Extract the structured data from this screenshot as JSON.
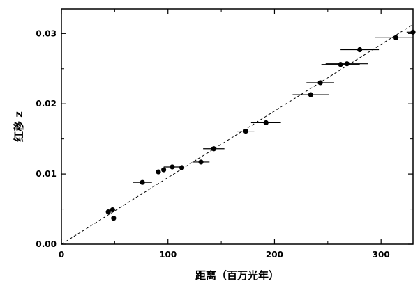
{
  "chart_data": {
    "type": "scatter",
    "title": "",
    "xlabel": "距离（百万光年）",
    "ylabel": "红移 z",
    "xlim": [
      0,
      330
    ],
    "ylim": [
      0,
      0.0335
    ],
    "x_ticks": [
      0,
      100,
      200,
      300
    ],
    "x_tick_labels": [
      "0",
      "100",
      "200",
      "300"
    ],
    "y_ticks": [
      0,
      0.01,
      0.02,
      0.03
    ],
    "y_tick_labels": [
      "0.00",
      "0.01",
      "0.02",
      "0.03"
    ],
    "grid": false,
    "legend": "none",
    "fit_line": {
      "style": "dashed",
      "x": [
        0,
        330
      ],
      "y": [
        0,
        0.0313
      ]
    },
    "points": [
      {
        "x": 44,
        "y": 0.0046,
        "xerr": 0
      },
      {
        "x": 48,
        "y": 0.0049,
        "xerr": 0
      },
      {
        "x": 49,
        "y": 0.0037,
        "xerr": 0
      },
      {
        "x": 76,
        "y": 0.0088,
        "xerr": 9
      },
      {
        "x": 91,
        "y": 0.0103,
        "xerr": 0
      },
      {
        "x": 96,
        "y": 0.0106,
        "xerr": 0
      },
      {
        "x": 104,
        "y": 0.011,
        "xerr": 8
      },
      {
        "x": 113,
        "y": 0.0109,
        "xerr": 0
      },
      {
        "x": 131,
        "y": 0.0117,
        "xerr": 8
      },
      {
        "x": 143,
        "y": 0.0136,
        "xerr": 10
      },
      {
        "x": 173,
        "y": 0.0161,
        "xerr": 8
      },
      {
        "x": 192,
        "y": 0.0173,
        "xerr": 14
      },
      {
        "x": 234,
        "y": 0.0213,
        "xerr": 17
      },
      {
        "x": 243,
        "y": 0.023,
        "xerr": 13
      },
      {
        "x": 262,
        "y": 0.0256,
        "xerr": 18
      },
      {
        "x": 268,
        "y": 0.0257,
        "xerr": 20
      },
      {
        "x": 280,
        "y": 0.0277,
        "xerr": 18
      },
      {
        "x": 314,
        "y": 0.0294,
        "xerr": 20
      },
      {
        "x": 330,
        "y": 0.0302,
        "xerr": 6
      }
    ]
  }
}
